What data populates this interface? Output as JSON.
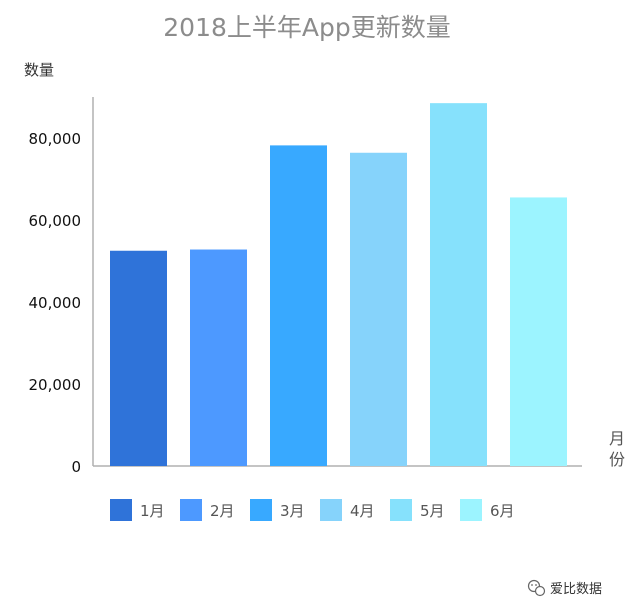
{
  "chart_data": {
    "type": "bar",
    "title": "2018上半年App更新数量",
    "ylabel": "数量",
    "xlabel": "月份",
    "categories": [
      "1月",
      "2月",
      "3月",
      "4月",
      "5月",
      "6月"
    ],
    "values": [
      52500,
      52800,
      78200,
      76400,
      88500,
      65500
    ],
    "colors": [
      "#2f73d9",
      "#4d99ff",
      "#38a9ff",
      "#86d3fb",
      "#86e1fc",
      "#9cf4ff"
    ],
    "ylim": [
      0,
      90000
    ],
    "yticks": [
      0,
      20000,
      40000,
      60000,
      80000
    ],
    "ytick_labels": [
      "0",
      "20,000",
      "40,000",
      "60,000",
      "80,000"
    ],
    "grid": false,
    "legend": "bottom"
  },
  "watermark": {
    "icon": "wechat-icon",
    "text": "爱比数据"
  }
}
